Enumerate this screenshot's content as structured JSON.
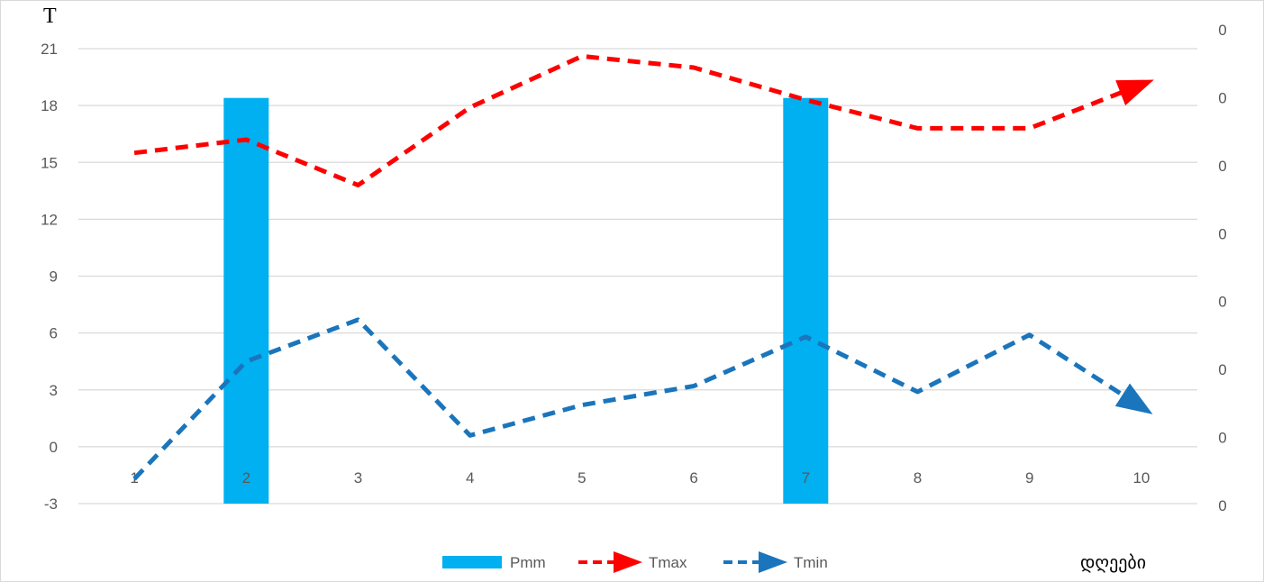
{
  "chart_data": {
    "type": "bar",
    "y_title": "T",
    "x_title": "დღეები",
    "categories": [
      "1",
      "2",
      "3",
      "4",
      "5",
      "6",
      "7",
      "8",
      "9",
      "10"
    ],
    "ylim": [
      -3,
      21
    ],
    "yticks": [
      "-3",
      "0",
      "3",
      "6",
      "9",
      "12",
      "15",
      "18",
      "21"
    ],
    "secondary_yticks": [
      "0",
      "0",
      "0",
      "0",
      "0",
      "0",
      "0",
      "0"
    ],
    "grid": true,
    "legend_position": "bottom",
    "series": [
      {
        "name": "Pmm",
        "type": "bar",
        "axis": "secondary",
        "color": "#00b0f0",
        "values_on_primary_scale": [
          null,
          18.4,
          null,
          null,
          null,
          null,
          18.4,
          null,
          null,
          null
        ]
      },
      {
        "name": "Tmax",
        "type": "line",
        "style": "dashed-arrow",
        "color": "#ff0000",
        "values": [
          15.5,
          16.2,
          13.8,
          17.9,
          20.6,
          20.0,
          18.3,
          16.8,
          16.8,
          19.1
        ]
      },
      {
        "name": "Tmin",
        "type": "line",
        "style": "dashed-arrow",
        "color": "#1a75bc",
        "values": [
          -1.7,
          4.5,
          6.7,
          0.6,
          2.2,
          3.2,
          5.8,
          2.9,
          5.9,
          2.1
        ]
      }
    ]
  }
}
